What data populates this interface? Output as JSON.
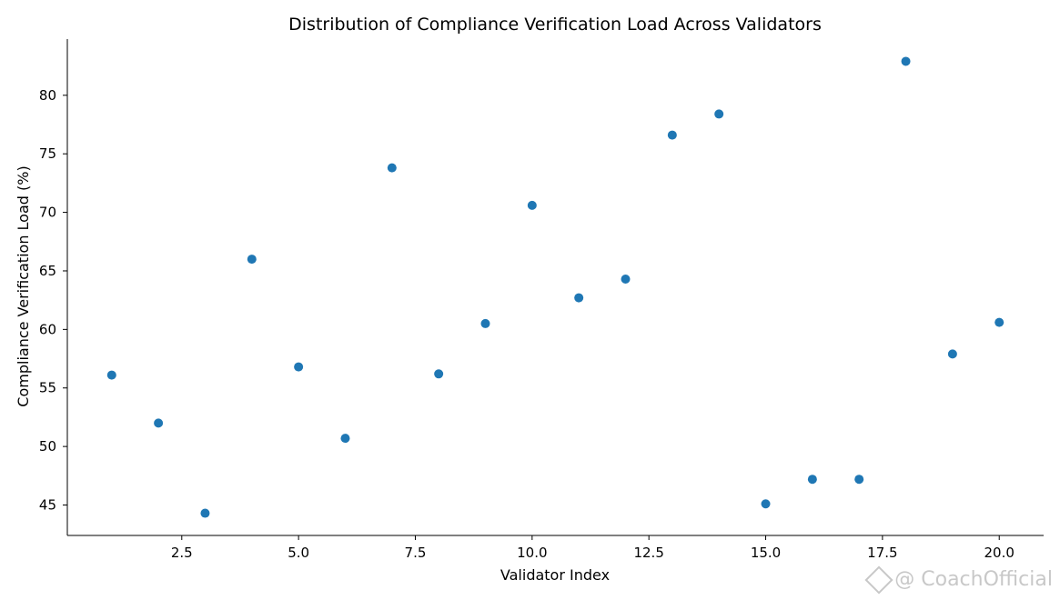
{
  "chart_data": {
    "type": "scatter",
    "title": "Distribution of Compliance Verification Load Across Validators",
    "xlabel": "Validator Index",
    "ylabel": "Compliance Verification Load (%)",
    "x": [
      1,
      2,
      3,
      4,
      5,
      6,
      7,
      8,
      9,
      10,
      11,
      12,
      13,
      14,
      15,
      16,
      17,
      18,
      19,
      20
    ],
    "y": [
      56.1,
      52.0,
      44.3,
      66.0,
      56.8,
      50.7,
      73.8,
      56.2,
      60.5,
      70.6,
      62.7,
      64.3,
      76.6,
      78.4,
      45.1,
      47.2,
      47.2,
      82.9,
      57.9,
      60.6
    ],
    "xlim": [
      0.05,
      20.95
    ],
    "ylim": [
      42.4,
      84.8
    ],
    "xticks": [
      2.5,
      5.0,
      7.5,
      10.0,
      12.5,
      15.0,
      17.5,
      20.0
    ],
    "xtick_labels": [
      "2.5",
      "5.0",
      "7.5",
      "10.0",
      "12.5",
      "15.0",
      "17.5",
      "20.0"
    ],
    "yticks": [
      45,
      50,
      55,
      60,
      65,
      70,
      75,
      80
    ],
    "ytick_labels": [
      "45",
      "50",
      "55",
      "60",
      "65",
      "70",
      "75",
      "80"
    ],
    "marker_color": "#1f77b4",
    "grid": false,
    "legend": "none"
  },
  "watermark": {
    "text": "@ CoachOfficial"
  }
}
